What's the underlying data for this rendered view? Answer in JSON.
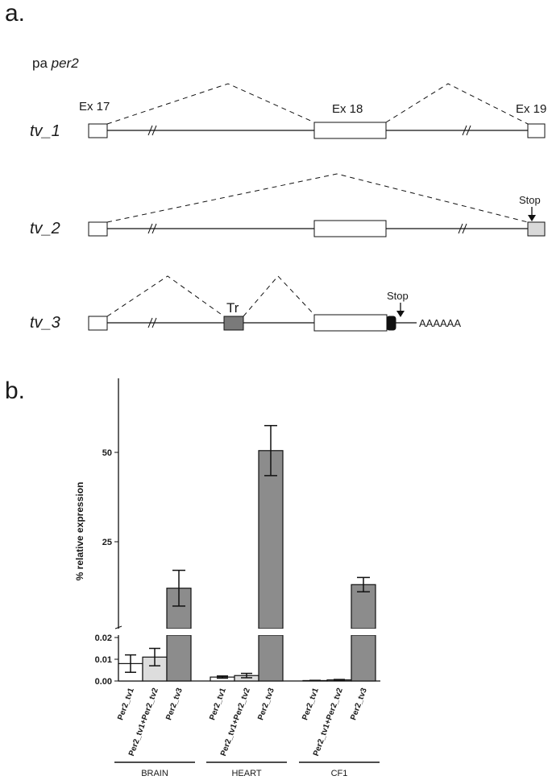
{
  "panel_a": {
    "letter": "a.",
    "gene_prefix": "pa ",
    "gene_name": "per2",
    "exon_labels": [
      "Ex 17",
      "Ex 18",
      "Ex 19"
    ],
    "transcripts": [
      "tv_1",
      "tv_2",
      "tv_3"
    ],
    "stop_label": "Stop",
    "tr_label": "Tr",
    "polya_label": "AAAAAA"
  },
  "panel_b": {
    "letter": "b."
  },
  "chart_data": {
    "type": "bar",
    "ylabel": "% relative expression",
    "broken_axis": true,
    "upper_segment": {
      "ticks": [
        "25",
        "50"
      ],
      "ylim": [
        0,
        70
      ]
    },
    "lower_segment": {
      "ticks": [
        "0.00",
        "0.01",
        "0.02"
      ],
      "ylim": [
        0,
        0.02
      ]
    },
    "categories": [
      "Per2_tv1",
      "Per2_tv1+Per2_tv2",
      "Per2_tv3"
    ],
    "groups": [
      {
        "name": "BRAIN",
        "bars": [
          {
            "category": "Per2_tv1",
            "value": 0.008,
            "err": 0.004,
            "color": "#ffffff"
          },
          {
            "category": "Per2_tv1+Per2_tv2",
            "value": 0.011,
            "err": 0.004,
            "color": "#dddddd"
          },
          {
            "category": "Per2_tv3",
            "value": 12.0,
            "err": 5.0,
            "color": "#8c8c8c"
          }
        ]
      },
      {
        "name": "HEART",
        "bars": [
          {
            "category": "Per2_tv1",
            "value": 0.0018,
            "err": 0.0005,
            "color": "#ffffff"
          },
          {
            "category": "Per2_tv1+Per2_tv2",
            "value": 0.0025,
            "err": 0.001,
            "color": "#dddddd"
          },
          {
            "category": "Per2_tv3",
            "value": 50.5,
            "err": 7.0,
            "color": "#8c8c8c"
          }
        ]
      },
      {
        "name": "CF1",
        "bars": [
          {
            "category": "Per2_tv1",
            "value": 0.0002,
            "err": 0.0001,
            "color": "#ffffff"
          },
          {
            "category": "Per2_tv1+Per2_tv2",
            "value": 0.0005,
            "err": 0.0002,
            "color": "#dddddd"
          },
          {
            "category": "Per2_tv3",
            "value": 13.0,
            "err": 2.0,
            "color": "#8c8c8c"
          }
        ]
      }
    ]
  }
}
